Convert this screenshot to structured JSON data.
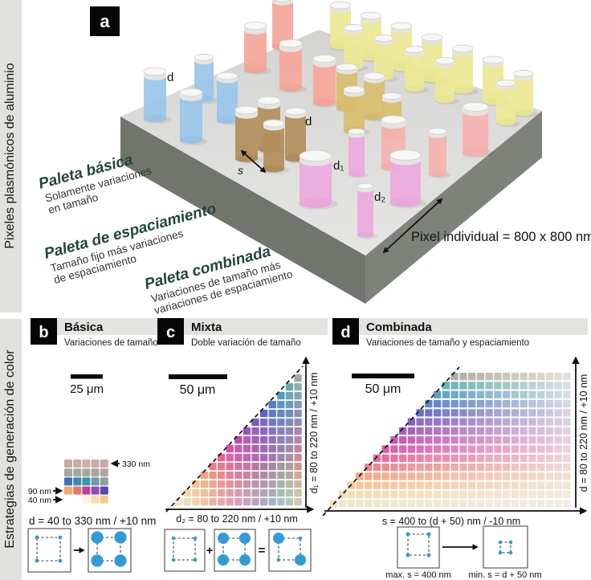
{
  "sidebar": {
    "top_label": "Pixeles plasmónicos de aluminio",
    "bottom_label": "Estrategias de generación de color"
  },
  "panel_a": {
    "letter": "a",
    "pixel_note": "Pixel individual = 800 x 800 nm",
    "labels": {
      "d_blue": "d",
      "d_brown": "d",
      "s": "s",
      "d1": "d₁",
      "d2": "d₂"
    },
    "annotations": [
      {
        "title": "Paleta básica",
        "line1": "Solamente variaciones",
        "line2": "en tamaño"
      },
      {
        "title": "Paleta de espaciamiento",
        "line1": "Tamaño fijo más variaciones",
        "line2": "de espaciamiento"
      },
      {
        "title": "Paleta combinada",
        "line1": "Variaciones de tamaño más",
        "line2": "variaciones de espaciamiento"
      }
    ],
    "colors": {
      "blue": "#9ac6ea",
      "salmon": "#f5a79a",
      "yellow": "#ece893",
      "olive": "#d7bd6d",
      "brown": "#b18e5d",
      "rose": "#f6b3af",
      "magenta": "#edaade",
      "slab_top_back": "#d4d4d2",
      "slab_top_front": "#e6e6e4",
      "slab_left": "#70766d",
      "slab_right": "#7d837a",
      "cap_top": "#f7f7f5"
    }
  },
  "panel_b": {
    "letter": "b",
    "title": "Básica",
    "subtitle": "Variaciones de tamaño",
    "scalebar": "25 μm",
    "caption": "d = 40 to 330 nm / +10 nm",
    "arrow_labels": {
      "top": "330 nm",
      "row4": "90 nm",
      "row5": "40 nm"
    },
    "grid": [
      [
        "#c6aaa3",
        "#c8aca5",
        "#cbafa8",
        "#c9ada6",
        "#c7aba4"
      ],
      [
        "#a6a89b",
        "#a2a89d",
        "#a5a89f",
        "#aaa3a0",
        "#b1a5a3"
      ],
      [
        "#406eb5",
        "#3e86bb",
        "#3a96ac",
        "#6f9ba5",
        "#8d9da2"
      ],
      [
        "#f2a869",
        "#ec7265",
        "#c13d9d",
        "#8e4bb0",
        "#5747ae"
      ],
      [
        null,
        null,
        "#fbf2e0",
        "#f7dcae",
        "#f3c98f"
      ]
    ]
  },
  "panel_c": {
    "letter": "c",
    "title": "Mixta",
    "subtitle": "Doble variación de tamaño",
    "scalebar": "50 μm",
    "x_axis": "d₂ = 80 to 220 nm / +10 nm",
    "y_axis": "d₁ = 80 to 220 nm / +10 nm",
    "plus": "+",
    "equals": "=",
    "palette": [
      "#f1e5c6",
      "#f5d9a7",
      "#f6c28e",
      "#f3a07e",
      "#ee7d7e",
      "#e75f94",
      "#d84fa6",
      "#bf4bb1",
      "#9f52bc",
      "#7d58c1",
      "#5e63c3",
      "#4f7fc5",
      "#4f9cbe",
      "#63adb2",
      "#aaa89a"
    ]
  },
  "panel_d": {
    "letter": "d",
    "title": "Combinada",
    "subtitle": "Variaciones de tamaño y espaciamiento",
    "scalebar": "50 μm",
    "x_axis": "s =  400 to (d + 50) nm / -10 nm",
    "y_axis": "d = 80 to 220 nm / +10 nm",
    "caption_max": "max. s = 400 nm",
    "caption_min": "min. s = d + 50 nm",
    "dot_color": "#2f9cd8"
  }
}
